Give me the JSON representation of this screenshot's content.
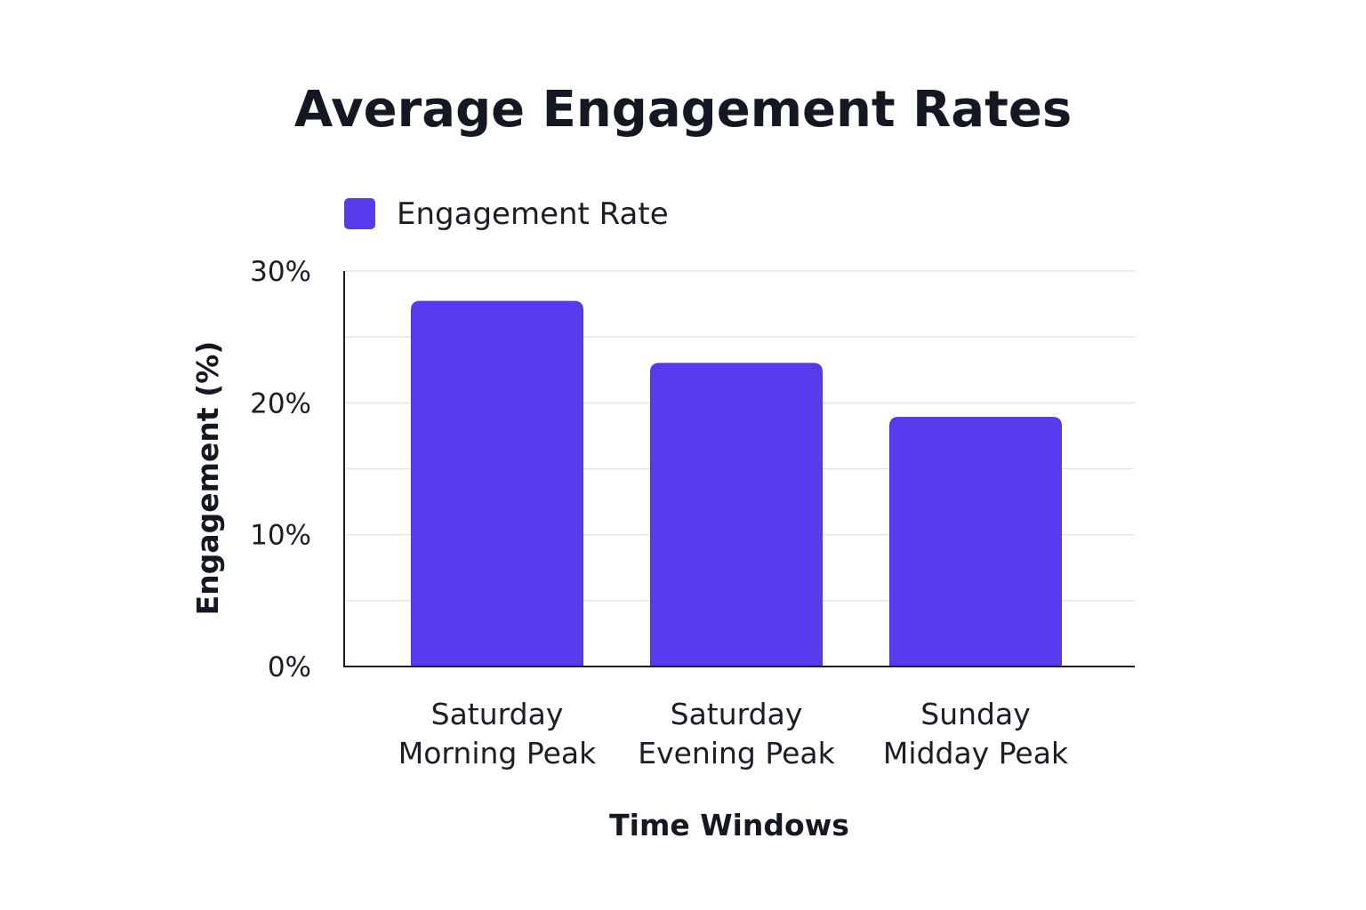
{
  "chart_data": {
    "type": "bar",
    "title": "Average Engagement Rates",
    "xlabel": "Time Windows",
    "ylabel": "Engagement (%)",
    "categories": [
      [
        "Saturday",
        "Morning Peak"
      ],
      [
        "Saturday",
        "Evening Peak"
      ],
      [
        "Sunday",
        "Midday Peak"
      ]
    ],
    "series": [
      {
        "name": "Engagement Rate",
        "color": "#563ced",
        "values": [
          27.7,
          23.0,
          18.9
        ]
      }
    ],
    "ylim": [
      0,
      30
    ],
    "yticks": [
      0,
      10,
      20,
      30
    ],
    "ytick_labels": [
      "0%",
      "10%",
      "20%",
      "30%"
    ],
    "minor_gridlines": [
      5,
      15,
      25
    ],
    "grid": true,
    "legend": "top-left"
  }
}
